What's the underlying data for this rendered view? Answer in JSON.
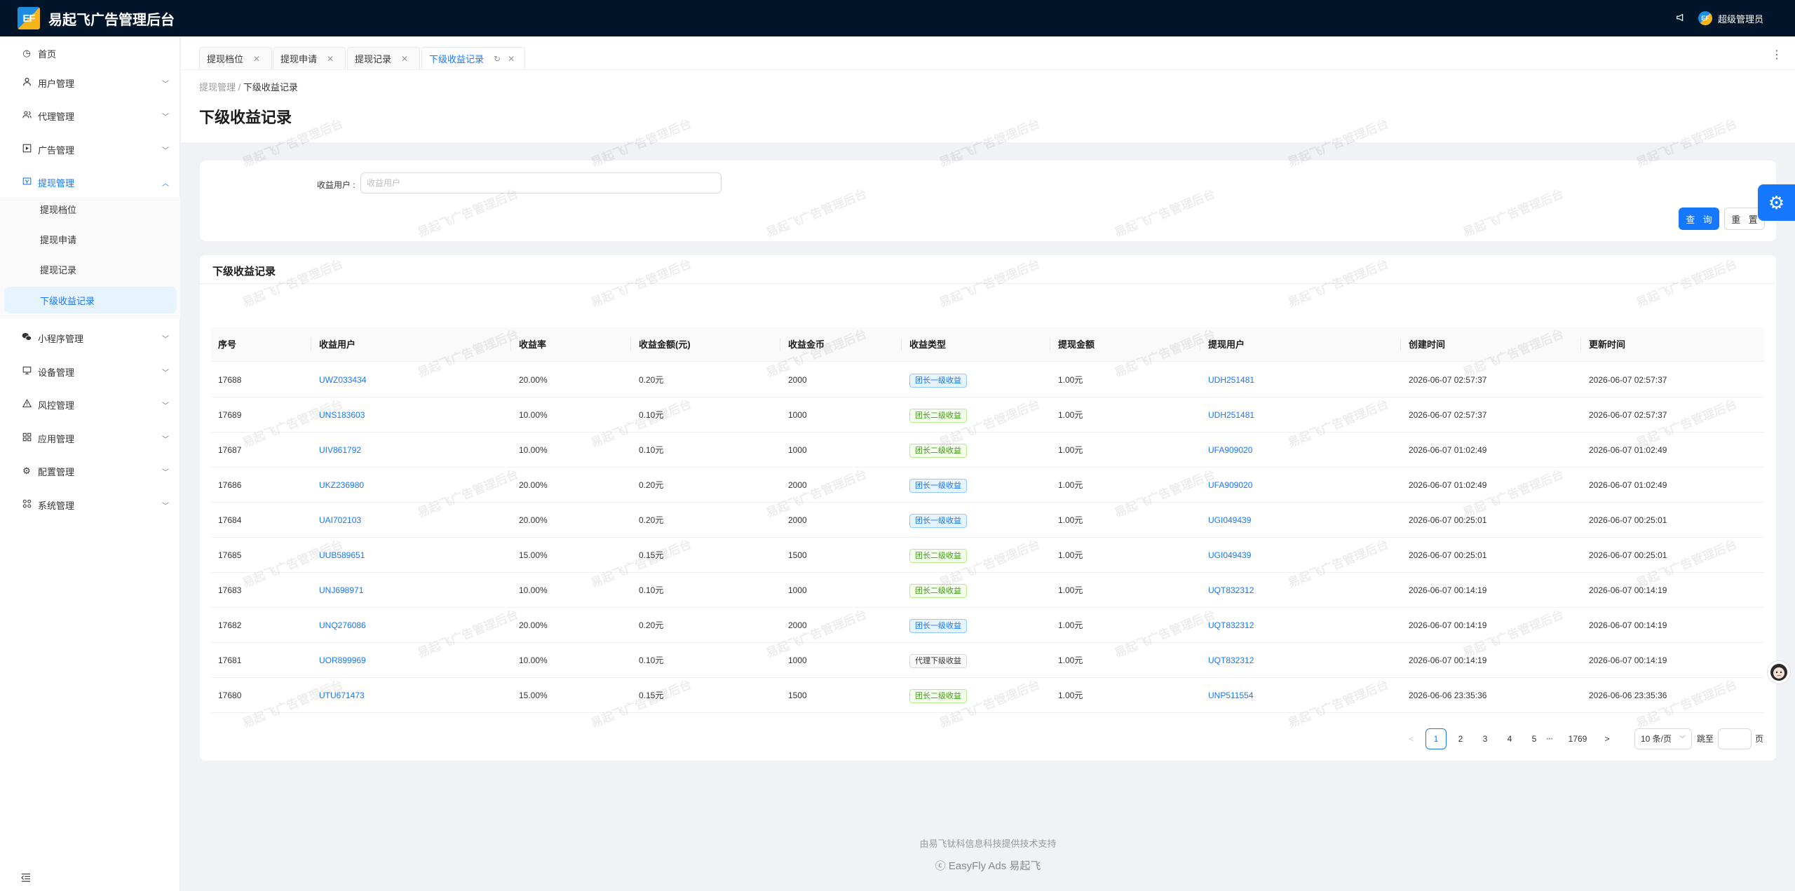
{
  "app": {
    "logo_text": "EF",
    "title": "易起飞广告管理后台",
    "user_avatar_text": "EF",
    "user_name": "超级管理员",
    "watermark": "易起飞广告管理后台"
  },
  "sidebar": {
    "home": "首页",
    "items": [
      "用户管理",
      "代理管理",
      "广告管理",
      "提现管理",
      "小程序管理",
      "设备管理",
      "风控管理",
      "应用管理",
      "配置管理",
      "系统管理"
    ],
    "withdraw_sub": [
      "提现档位",
      "提现申请",
      "提现记录",
      "下级收益记录"
    ]
  },
  "tabs": [
    "提现档位",
    "提现申请",
    "提现记录",
    "下级收益记录"
  ],
  "breadcrumb": {
    "parent": "提现管理",
    "separator": "/",
    "current": "下级收益记录"
  },
  "page_title": "下级收益记录",
  "search": {
    "label": "收益用户 :",
    "placeholder": "收益用户",
    "query_btn": "查 询",
    "reset_btn": "重 置"
  },
  "table": {
    "title": "下级收益记录",
    "columns": [
      "序号",
      "收益用户",
      "收益率",
      "收益金额(元)",
      "收益金币",
      "收益类型",
      "提现金额",
      "提现用户",
      "创建时间",
      "更新时间"
    ],
    "rows": [
      {
        "id": "17688",
        "user": "UWZ033434",
        "rate": "20.00%",
        "amount": "0.20元",
        "coins": "2000",
        "type": "团长一级收益",
        "tag": "blue",
        "withdraw": "1.00元",
        "wuser": "UDH251481",
        "created": "2026-06-07 02:57:37",
        "updated": "2026-06-07 02:57:37"
      },
      {
        "id": "17689",
        "user": "UNS183603",
        "rate": "10.00%",
        "amount": "0.10元",
        "coins": "1000",
        "type": "团长二级收益",
        "tag": "green",
        "withdraw": "1.00元",
        "wuser": "UDH251481",
        "created": "2026-06-07 02:57:37",
        "updated": "2026-06-07 02:57:37"
      },
      {
        "id": "17687",
        "user": "UIV861792",
        "rate": "10.00%",
        "amount": "0.10元",
        "coins": "1000",
        "type": "团长二级收益",
        "tag": "green",
        "withdraw": "1.00元",
        "wuser": "UFA909020",
        "created": "2026-06-07 01:02:49",
        "updated": "2026-06-07 01:02:49"
      },
      {
        "id": "17686",
        "user": "UKZ236980",
        "rate": "20.00%",
        "amount": "0.20元",
        "coins": "2000",
        "type": "团长一级收益",
        "tag": "blue",
        "withdraw": "1.00元",
        "wuser": "UFA909020",
        "created": "2026-06-07 01:02:49",
        "updated": "2026-06-07 01:02:49"
      },
      {
        "id": "17684",
        "user": "UAI702103",
        "rate": "20.00%",
        "amount": "0.20元",
        "coins": "2000",
        "type": "团长一级收益",
        "tag": "blue",
        "withdraw": "1.00元",
        "wuser": "UGI049439",
        "created": "2026-06-07 00:25:01",
        "updated": "2026-06-07 00:25:01"
      },
      {
        "id": "17685",
        "user": "UUB589651",
        "rate": "15.00%",
        "amount": "0.15元",
        "coins": "1500",
        "type": "团长二级收益",
        "tag": "green",
        "withdraw": "1.00元",
        "wuser": "UGI049439",
        "created": "2026-06-07 00:25:01",
        "updated": "2026-06-07 00:25:01"
      },
      {
        "id": "17683",
        "user": "UNJ698971",
        "rate": "10.00%",
        "amount": "0.10元",
        "coins": "1000",
        "type": "团长二级收益",
        "tag": "green",
        "withdraw": "1.00元",
        "wuser": "UQT832312",
        "created": "2026-06-07 00:14:19",
        "updated": "2026-06-07 00:14:19"
      },
      {
        "id": "17682",
        "user": "UNQ276086",
        "rate": "20.00%",
        "amount": "0.20元",
        "coins": "2000",
        "type": "团长一级收益",
        "tag": "blue",
        "withdraw": "1.00元",
        "wuser": "UQT832312",
        "created": "2026-06-07 00:14:19",
        "updated": "2026-06-07 00:14:19"
      },
      {
        "id": "17681",
        "user": "UOR899969",
        "rate": "10.00%",
        "amount": "0.10元",
        "coins": "1000",
        "type": "代理下级收益",
        "tag": "gray",
        "withdraw": "1.00元",
        "wuser": "UQT832312",
        "created": "2026-06-07 00:14:19",
        "updated": "2026-06-07 00:14:19"
      },
      {
        "id": "17680",
        "user": "UTU671473",
        "rate": "15.00%",
        "amount": "0.15元",
        "coins": "1500",
        "type": "团长二级收益",
        "tag": "green",
        "withdraw": "1.00元",
        "wuser": "UNP511554",
        "created": "2026-06-06 23:35:36",
        "updated": "2026-06-06 23:35:36"
      }
    ]
  },
  "pagination": {
    "prev": "<",
    "next": ">",
    "pages": [
      "1",
      "2",
      "3",
      "4",
      "5"
    ],
    "ellipsis": "•••",
    "last": "1769",
    "current": "1",
    "page_size": "10 条/页",
    "jump_label": "跳至",
    "page_suffix": "页"
  },
  "footer": {
    "line1": "由易飞钛科信息科技提供技术支持",
    "line2": "ⓒ EasyFly Ads 易起飞"
  },
  "colors": {
    "topbar": "#001529",
    "primary": "#1677ff",
    "tag_blue": "#e6f4ff",
    "tag_green": "#f6ffed"
  }
}
